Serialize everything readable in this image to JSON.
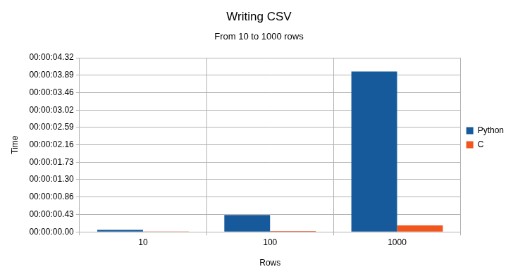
{
  "chart_data": {
    "type": "bar",
    "title": "Writing CSV",
    "subtitle": "From 10 to 1000 rows",
    "x_label": "Rows",
    "y_label": "Time",
    "categories": [
      "10",
      "100",
      "1000"
    ],
    "series": [
      {
        "name": "Python",
        "color": "#175a9c",
        "values": [
          0.05,
          0.42,
          3.98
        ]
      },
      {
        "name": "C",
        "color": "#f0561d",
        "values": [
          0.005,
          0.02,
          0.16
        ]
      }
    ],
    "ylim": [
      0,
      4.32
    ],
    "yticks": [
      {
        "value": 0,
        "label": "00:00:00.00"
      },
      {
        "value": 0.43,
        "label": "00:00:00.43"
      },
      {
        "value": 0.86,
        "label": "00:00:00.86"
      },
      {
        "value": 1.3,
        "label": "00:00:01.30"
      },
      {
        "value": 1.73,
        "label": "00:00:01.73"
      },
      {
        "value": 2.16,
        "label": "00:00:02.16"
      },
      {
        "value": 2.59,
        "label": "00:00:02.59"
      },
      {
        "value": 3.02,
        "label": "00:00:03.02"
      },
      {
        "value": 3.46,
        "label": "00:00:03.46"
      },
      {
        "value": 3.89,
        "label": "00:00:03.89"
      },
      {
        "value": 4.32,
        "label": "00:00:04.32"
      }
    ],
    "grid": true,
    "legend": "right"
  }
}
